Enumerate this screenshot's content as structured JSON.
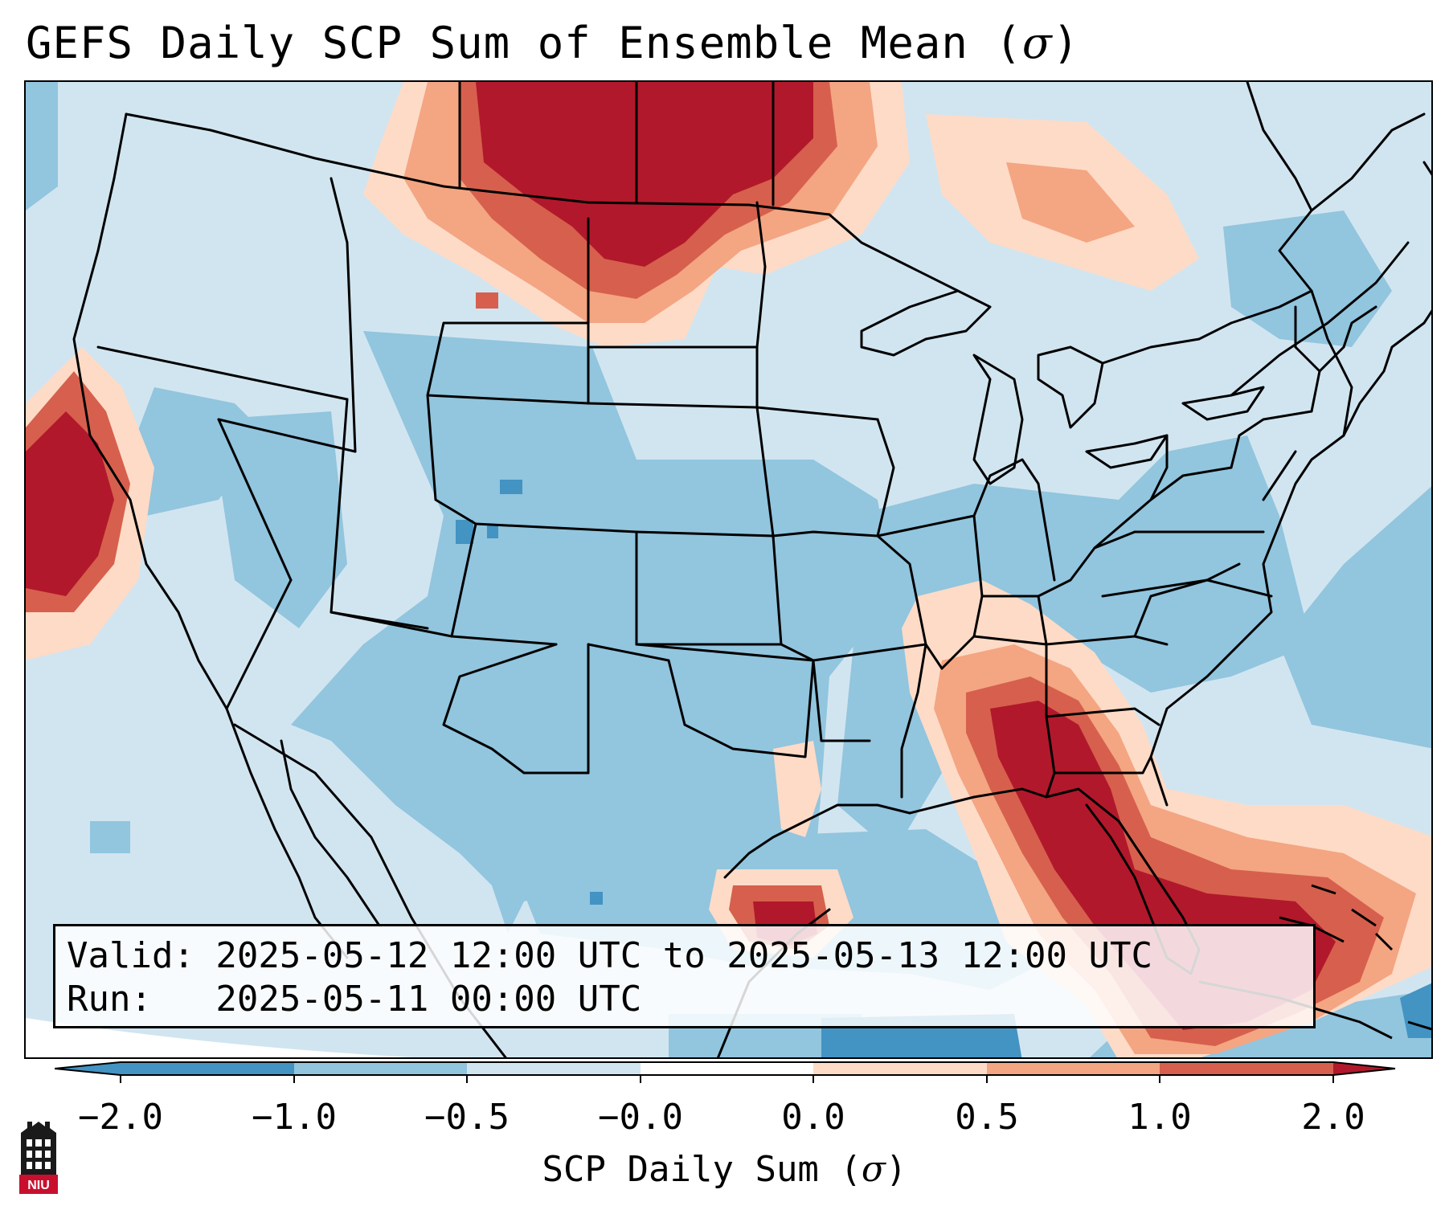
{
  "title": {
    "text": "GEFS Daily SCP Sum of Ensemble Mean (",
    "symbol": "σ",
    "suffix": ")"
  },
  "info": {
    "valid_line": "Valid: 2025-05-12 12:00 UTC to 2025-05-13 12:00 UTC",
    "run_line": "Run:   2025-05-11 00:00 UTC"
  },
  "colorbar": {
    "label_text": "SCP Daily Sum (",
    "label_symbol": "σ",
    "label_suffix": ")",
    "tick_labels": [
      "−2.0",
      "−1.0",
      "−0.5",
      "−0.0",
      "0.0",
      "0.5",
      "1.0",
      "2.0"
    ],
    "colors": [
      "#4393c3",
      "#92c5de",
      "#d1e5f0",
      "#fddbc7",
      "#f4a582",
      "#d6604d",
      "#b2182b"
    ],
    "extend": "both"
  },
  "map": {
    "field_colors": {
      "near_zero_negative": "#d1e5f0",
      "moderate_negative": "#92c5de",
      "strong_negative": "#4393c3",
      "slight_positive": "#fddbc7",
      "moderate_positive": "#f4a582",
      "high_positive": "#d6604d",
      "very_high_positive": "#b2182b"
    },
    "regions_above_2": [
      "southern Canadian prairies",
      "northern California coast",
      "Georgia and Florida",
      "Bahamas"
    ]
  },
  "logo": {
    "text": "NIU",
    "color": "#c8102e"
  }
}
